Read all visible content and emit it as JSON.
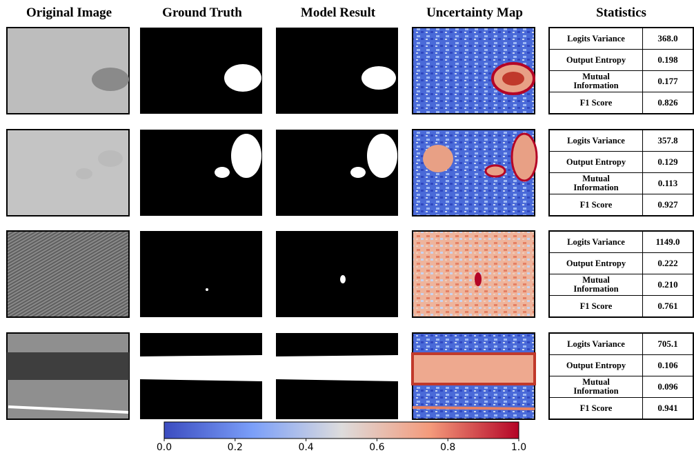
{
  "headers": [
    "Original Image",
    "Ground Truth",
    "Model Result",
    "Uncertainty Map",
    "Statistics"
  ],
  "rows": [
    {
      "stats": [
        [
          "Logits Variance",
          "368.0"
        ],
        [
          "Output Entropy",
          "0.198"
        ],
        [
          "Mutual Information",
          "0.177"
        ],
        [
          "F1 Score",
          "0.826"
        ]
      ]
    },
    {
      "stats": [
        [
          "Logits Variance",
          "357.8"
        ],
        [
          "Output Entropy",
          "0.129"
        ],
        [
          "Mutual Information",
          "0.113"
        ],
        [
          "F1 Score",
          "0.927"
        ]
      ]
    },
    {
      "stats": [
        [
          "Logits Variance",
          "1149.0"
        ],
        [
          "Output Entropy",
          "0.222"
        ],
        [
          "Mutual Information",
          "0.210"
        ],
        [
          "F1 Score",
          "0.761"
        ]
      ]
    },
    {
      "stats": [
        [
          "Logits Variance",
          "705.1"
        ],
        [
          "Output Entropy",
          "0.106"
        ],
        [
          "Mutual Information",
          "0.096"
        ],
        [
          "F1 Score",
          "0.941"
        ]
      ]
    }
  ],
  "colorbar": {
    "ticks": [
      {
        "value": 0,
        "label": "0.0"
      },
      {
        "value": 0.2,
        "label": "0.2"
      },
      {
        "value": 0.4,
        "label": "0.4"
      },
      {
        "value": 0.6,
        "label": "0.6"
      },
      {
        "value": 0.8,
        "label": "0.8"
      },
      {
        "value": 1,
        "label": "1.0"
      }
    ]
  }
}
